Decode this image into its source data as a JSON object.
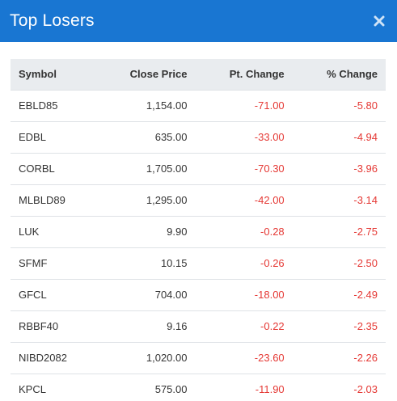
{
  "header": {
    "title": "Top Losers",
    "close_icon": "close-icon"
  },
  "colors": {
    "header_bg": "#1976d2",
    "negative": "#e53935",
    "table_header_bg": "#e9ecef"
  },
  "table": {
    "columns": [
      "Symbol",
      "Close Price",
      "Pt. Change",
      "% Change"
    ],
    "rows": [
      {
        "symbol": "EBLD85",
        "close": "1,154.00",
        "pt": "-71.00",
        "pct": "-5.80"
      },
      {
        "symbol": "EDBL",
        "close": "635.00",
        "pt": "-33.00",
        "pct": "-4.94"
      },
      {
        "symbol": "CORBL",
        "close": "1,705.00",
        "pt": "-70.30",
        "pct": "-3.96"
      },
      {
        "symbol": "MLBLD89",
        "close": "1,295.00",
        "pt": "-42.00",
        "pct": "-3.14"
      },
      {
        "symbol": "LUK",
        "close": "9.90",
        "pt": "-0.28",
        "pct": "-2.75"
      },
      {
        "symbol": "SFMF",
        "close": "10.15",
        "pt": "-0.26",
        "pct": "-2.50"
      },
      {
        "symbol": "GFCL",
        "close": "704.00",
        "pt": "-18.00",
        "pct": "-2.49"
      },
      {
        "symbol": "RBBF40",
        "close": "9.16",
        "pt": "-0.22",
        "pct": "-2.35"
      },
      {
        "symbol": "NIBD2082",
        "close": "1,020.00",
        "pt": "-23.60",
        "pct": "-2.26"
      },
      {
        "symbol": "KPCL",
        "close": "575.00",
        "pt": "-11.90",
        "pct": "-2.03"
      }
    ]
  }
}
